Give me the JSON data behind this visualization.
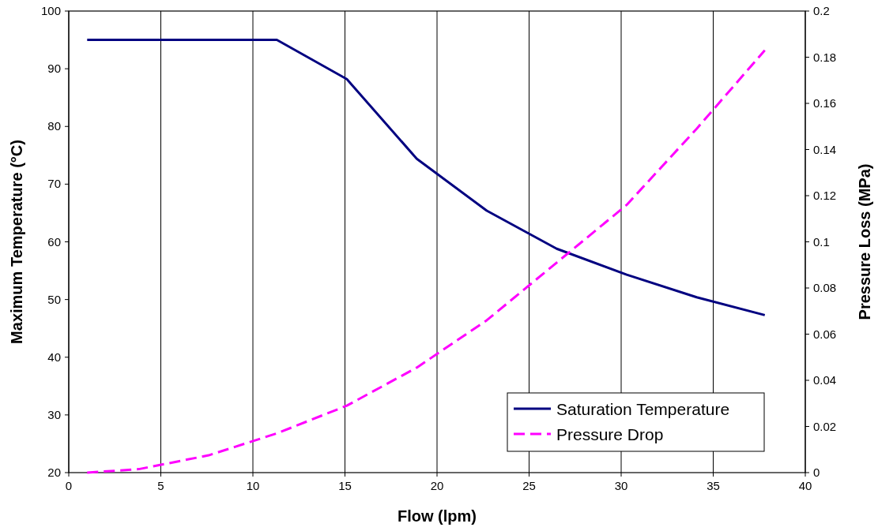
{
  "chart_data": {
    "type": "line",
    "xlabel": "Flow (lpm)",
    "ylabel": "Maximum Temperature (°C)",
    "y2label": "Pressure Loss (MPa)",
    "xlim": [
      0,
      40
    ],
    "xticks": [
      0,
      5,
      10,
      15,
      20,
      25,
      30,
      35,
      40
    ],
    "ylim": [
      20,
      100
    ],
    "yticks": [
      20,
      30,
      40,
      50,
      60,
      70,
      80,
      90,
      100
    ],
    "y2lim": [
      0,
      0.2
    ],
    "y2ticks": [
      0,
      0.02,
      0.04,
      0.06,
      0.08,
      0.1,
      0.12,
      0.14,
      0.16,
      0.18,
      0.2
    ],
    "grid": "x",
    "legend": "bottom right",
    "series": [
      {
        "name": "Saturation Temperature",
        "color": "#000080",
        "line_style": "solid",
        "x": [
          1,
          11.3,
          15.1,
          18.9,
          22.7,
          26.5,
          30.3,
          34.1,
          37.8
        ],
        "values": [
          95,
          95,
          88.2,
          74.4,
          65.4,
          58.8,
          54.3,
          50.4,
          47.3
        ]
      },
      {
        "name": "Pressure Drop",
        "color": "#ff00ff",
        "line_style": "dashed",
        "axis": "y2",
        "x": [
          1,
          3.8,
          7.6,
          11.3,
          15.1,
          18.9,
          22.7,
          26.5,
          30.3,
          34.1,
          37.8
        ],
        "values": [
          0,
          0.0015,
          0.0075,
          0.017,
          0.029,
          0.0455,
          0.066,
          0.091,
          0.116,
          0.149,
          0.183
        ]
      }
    ]
  }
}
